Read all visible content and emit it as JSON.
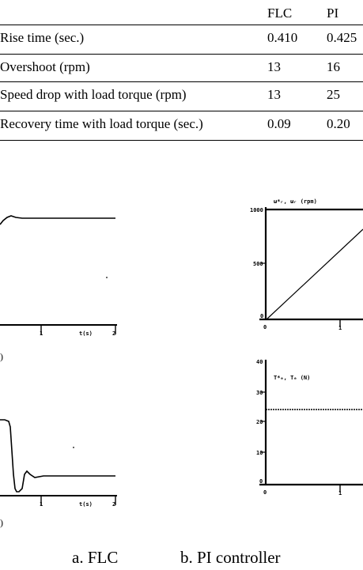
{
  "table": {
    "header": [
      "",
      "FLC",
      "PI"
    ],
    "rows": [
      [
        "Rise time (sec.)",
        "0.410",
        "0.425"
      ],
      [
        "Overshoot (rpm)",
        "13",
        "16"
      ],
      [
        "Speed drop with load torque (rpm)",
        "13",
        "25"
      ],
      [
        "Recovery time with load torque (sec.)",
        "0.09",
        "0.20"
      ]
    ]
  },
  "plots": {
    "flc_speed": {
      "x_label": "t(s)",
      "x_tick": "1",
      "x_end": "2",
      "side_label": ")"
    },
    "flc_torque": {
      "x_label": "t(s)",
      "x_tick": "1",
      "x_end": "2",
      "side_label": ")"
    },
    "pi_speed": {
      "title": "ω*ᵣ, ωᵣ (rpm)",
      "y_top": "1000",
      "y_mid": "500",
      "y_zero": "0",
      "x_zero": "0",
      "x_tick": "1"
    },
    "pi_torque": {
      "title": "T*ₑ, Tₑ (N)",
      "y_ticks": [
        "40",
        "30",
        "20",
        "10",
        "0"
      ],
      "x_zero": "0",
      "x_tick": "1"
    }
  },
  "captions": {
    "a": "a. FLC",
    "b": "b. PI controller"
  }
}
